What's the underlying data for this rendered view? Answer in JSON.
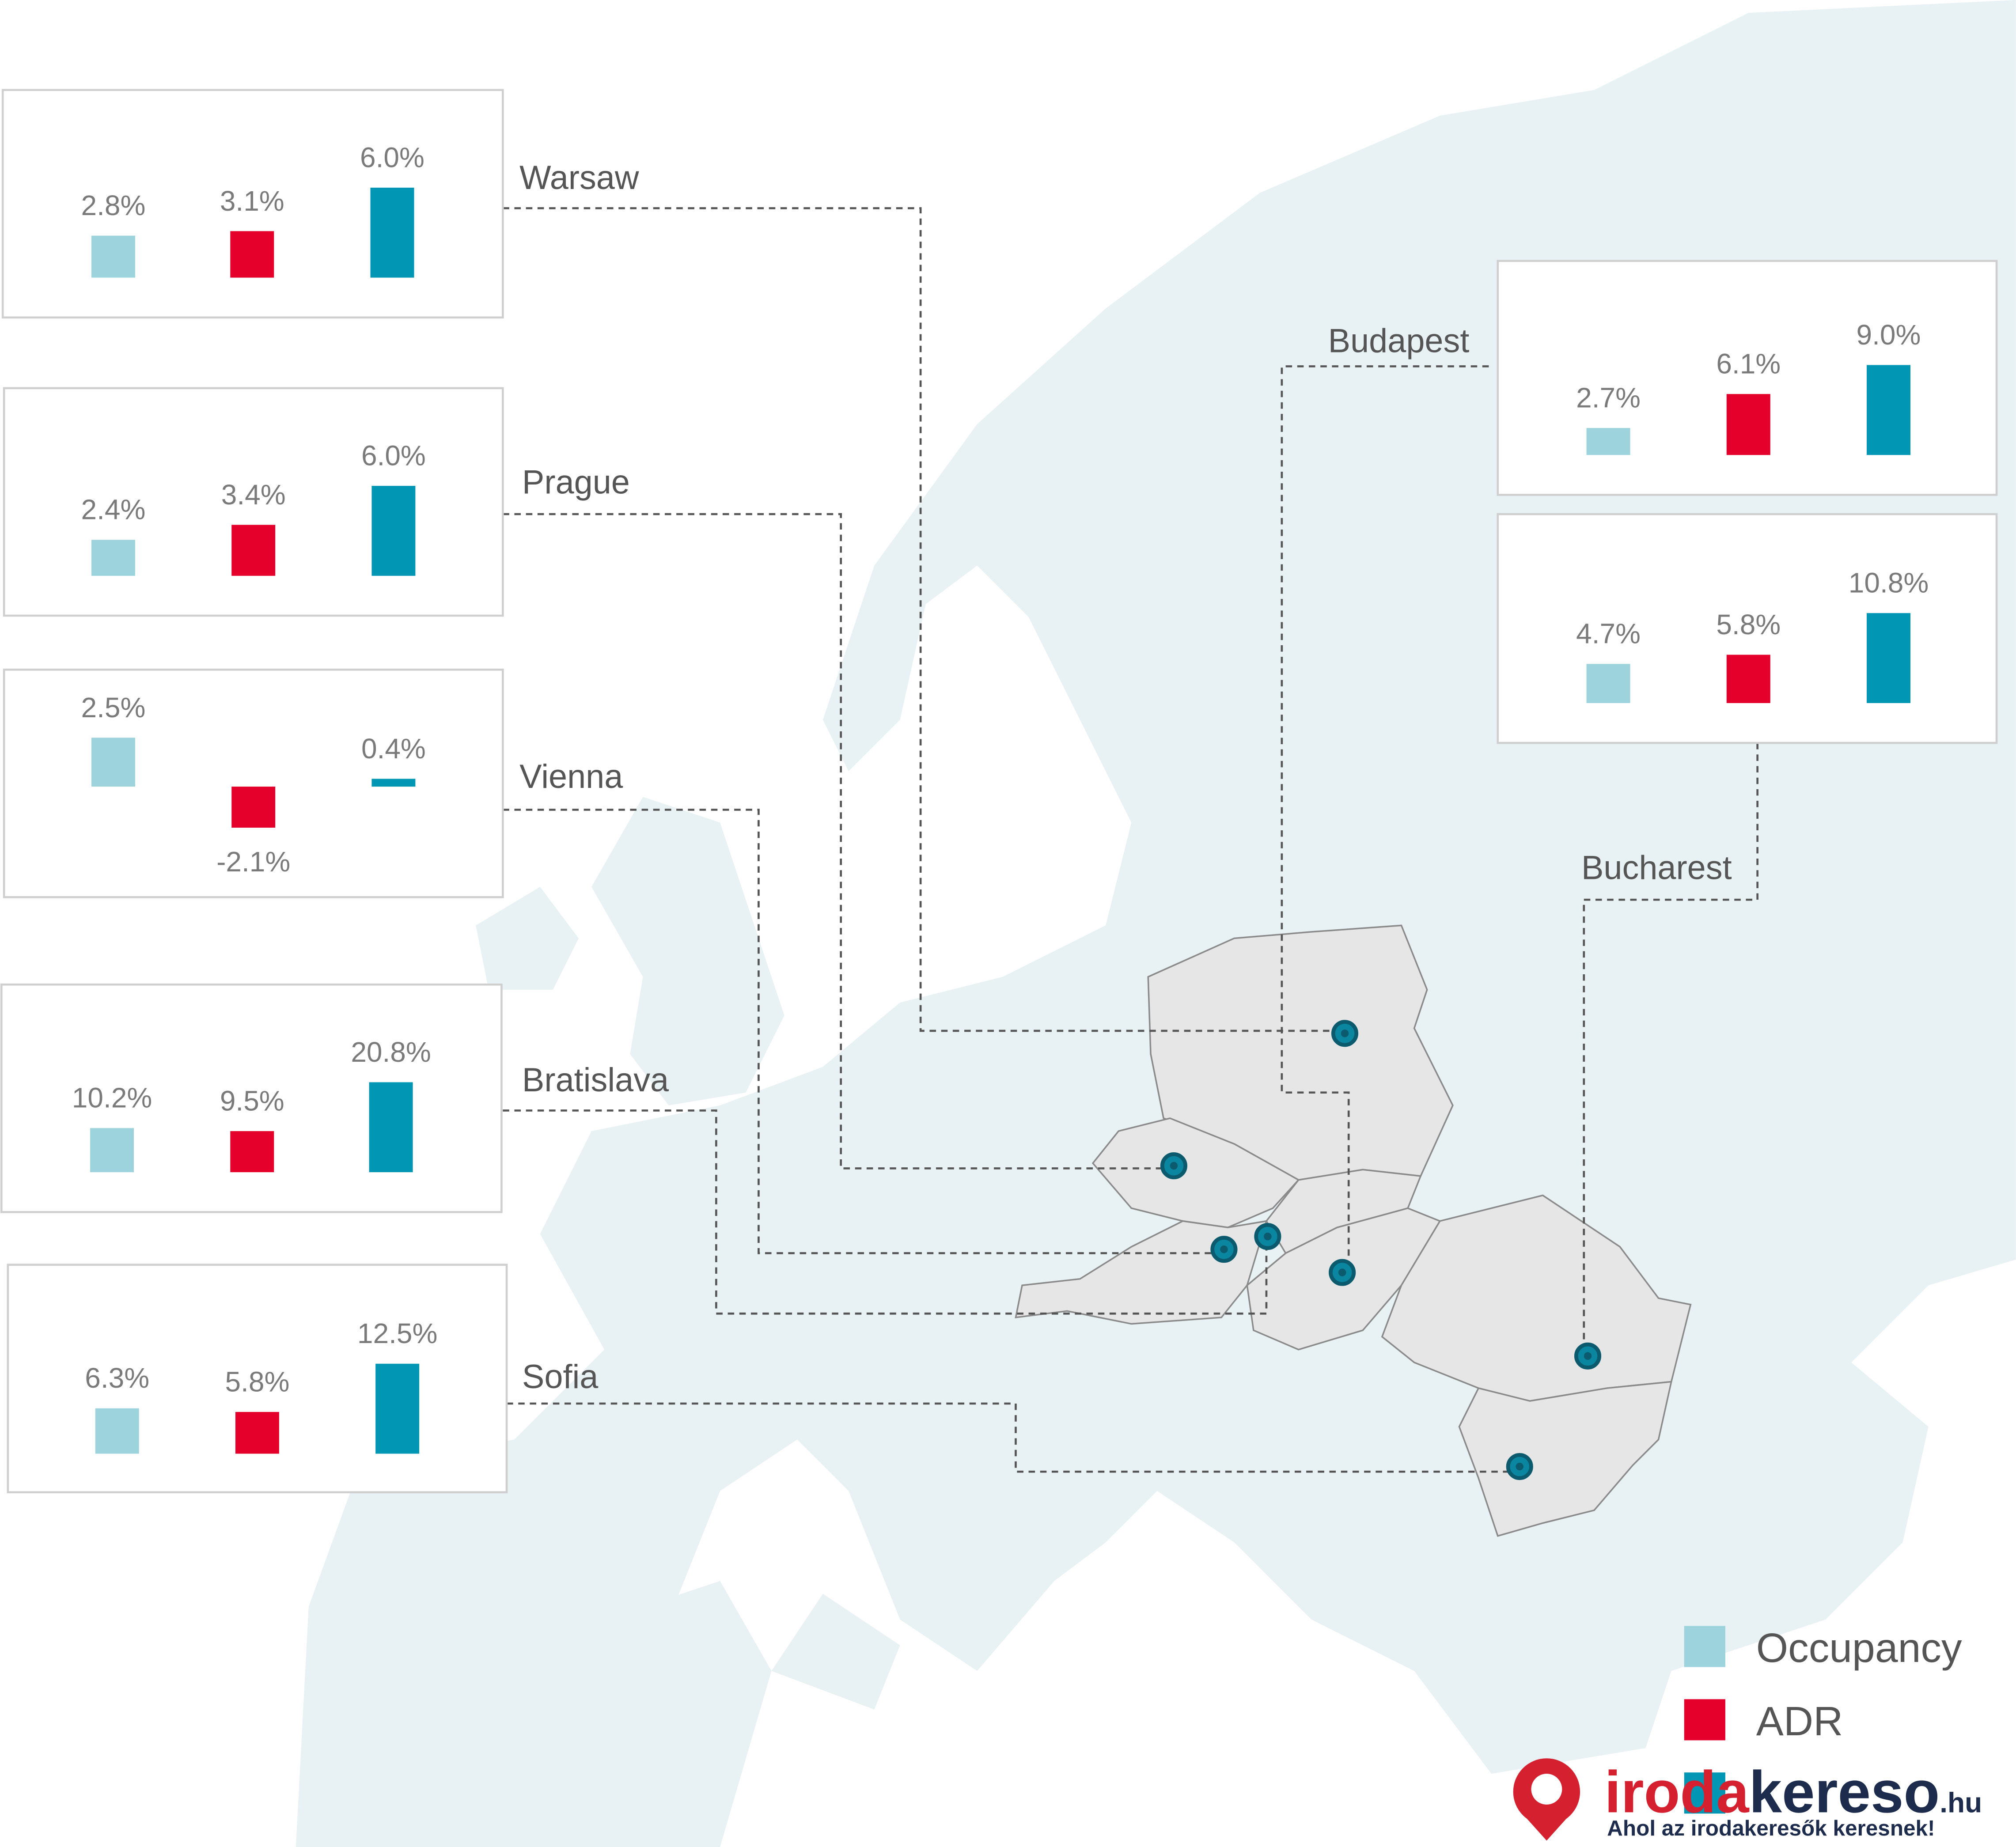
{
  "chart_data": {
    "type": "bar",
    "categories": [
      "Warsaw",
      "Prague",
      "Vienna",
      "Bratislava",
      "Sofia",
      "Budapest",
      "Bucharest"
    ],
    "series": [
      {
        "name": "Occupancy",
        "color": "#9dd3dc",
        "values": [
          2.8,
          2.4,
          2.5,
          10.2,
          6.3,
          2.7,
          4.7
        ],
        "value_labels": [
          "2.8%",
          "2.4%",
          "2.5%",
          "10.2%",
          "6.3%",
          "2.7%",
          "4.7%"
        ]
      },
      {
        "name": "ADR",
        "color": "#e4002b",
        "values": [
          3.1,
          3.4,
          -2.1,
          9.5,
          5.8,
          6.1,
          5.8
        ],
        "value_labels": [
          "3.1%",
          "3.4%",
          "-2.1%",
          "9.5%",
          "5.8%",
          "6.1%",
          "5.8%"
        ]
      },
      {
        "color": "#0096b4",
        "values": [
          6.0,
          6.0,
          0.4,
          20.8,
          12.5,
          9.0,
          10.8
        ],
        "value_labels": [
          "6.0%",
          "6.0%",
          "0.4%",
          "20.8%",
          "12.5%",
          "9.0%",
          "10.8%"
        ]
      }
    ]
  },
  "logo": {
    "text_a": "iroda",
    "text_b": "kereso",
    "suffix": ".hu",
    "tagline": "Ahol az irodakeresők keresnek!"
  }
}
